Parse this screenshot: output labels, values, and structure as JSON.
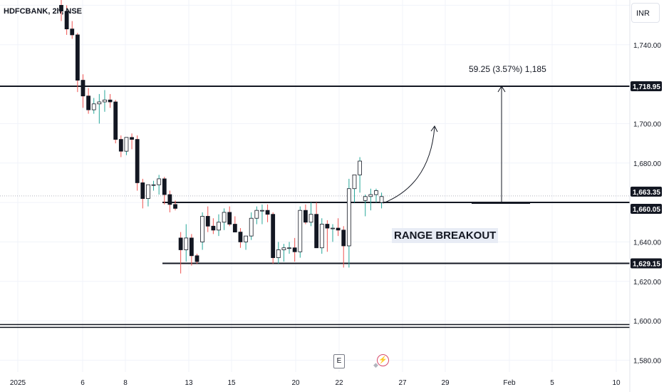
{
  "header": {
    "symbol": "HDFCBANK, 2h, NSE"
  },
  "currency": "INR",
  "annotations": {
    "measure": "59.25 (3.57%) 1,185",
    "breakout": "RANGE BREAKOUT",
    "events": {
      "earnings": "E",
      "dividend": "⚡"
    }
  },
  "chart_data": {
    "type": "candlestick",
    "x_axis": [
      "2025",
      "6",
      "8",
      "13",
      "15",
      "20",
      "22",
      "27",
      "29",
      "Feb",
      "5",
      "10"
    ],
    "y_axis": {
      "ticks": [
        1580,
        1600,
        1620,
        1640,
        1680,
        1700,
        1740
      ],
      "tick_labels": [
        "1,580.00",
        "1,600.00",
        "1,620.00",
        "1,640.00",
        "1,680.00",
        "1,700.00",
        "1,740.00"
      ],
      "range": [
        1560,
        1760
      ]
    },
    "price_badges": [
      {
        "value": 1718.95,
        "label": "1,718.95"
      },
      {
        "value": 1663.35,
        "label": "1,663.35"
      },
      {
        "value": 1660.05,
        "label": "1,660.05"
      },
      {
        "value": 1629.15,
        "label": "1,629.15"
      }
    ],
    "levels": [
      {
        "price": 1718.95,
        "style": "solid",
        "span": "full"
      },
      {
        "price": 1660.05,
        "style": "solid",
        "span": "from-range-start"
      },
      {
        "price": 1629.15,
        "style": "solid",
        "span": "range"
      },
      {
        "price": 1597.0,
        "style": "double",
        "span": "full"
      }
    ],
    "candles": [
      [
        1760,
        1765,
        1752,
        1757
      ],
      [
        1757,
        1760,
        1745,
        1748
      ],
      [
        1748,
        1752,
        1743,
        1745
      ],
      [
        1745,
        1746,
        1716,
        1722
      ],
      [
        1722,
        1725,
        1708,
        1714
      ],
      [
        1714,
        1718,
        1705,
        1707
      ],
      [
        1707,
        1713,
        1705,
        1710
      ],
      [
        1710,
        1715,
        1700,
        1711
      ],
      [
        1711,
        1717,
        1706,
        1712
      ],
      [
        1712,
        1715,
        1708,
        1711
      ],
      [
        1711,
        1712,
        1690,
        1692
      ],
      [
        1692,
        1694,
        1683,
        1686
      ],
      [
        1686,
        1693,
        1684,
        1693
      ],
      [
        1693,
        1695,
        1687,
        1692
      ],
      [
        1692,
        1694,
        1666,
        1670
      ],
      [
        1670,
        1672,
        1657,
        1662
      ],
      [
        1662,
        1668,
        1658,
        1669
      ],
      [
        1669,
        1671,
        1666,
        1669
      ],
      [
        1669,
        1674,
        1664,
        1672
      ],
      [
        1672,
        1673,
        1659,
        1664
      ],
      [
        1664,
        1666,
        1655,
        1659
      ],
      [
        1659,
        1661,
        1656,
        1657
      ],
      [
        1642,
        1645,
        1624,
        1636
      ],
      [
        1636,
        1649,
        1630,
        1642
      ],
      [
        1642,
        1644,
        1628,
        1633
      ],
      [
        1633,
        1634,
        1629,
        1630
      ],
      [
        1640,
        1655,
        1636,
        1653
      ],
      [
        1653,
        1658,
        1645,
        1648
      ],
      [
        1648,
        1652,
        1644,
        1646
      ],
      [
        1646,
        1654,
        1643,
        1650
      ],
      [
        1650,
        1657,
        1646,
        1655
      ],
      [
        1655,
        1658,
        1648,
        1649
      ],
      [
        1649,
        1653,
        1645,
        1645
      ],
      [
        1645,
        1647,
        1637,
        1640
      ],
      [
        1640,
        1643,
        1636,
        1643
      ],
      [
        1643,
        1655,
        1641,
        1652
      ],
      [
        1652,
        1658,
        1649,
        1656
      ],
      [
        1656,
        1659,
        1649,
        1656
      ],
      [
        1656,
        1659,
        1650,
        1654
      ],
      [
        1654,
        1655,
        1629,
        1632
      ],
      [
        1632,
        1640,
        1629,
        1636
      ],
      [
        1636,
        1639,
        1630,
        1637
      ],
      [
        1637,
        1640,
        1634,
        1637
      ],
      [
        1637,
        1642,
        1630,
        1635
      ],
      [
        1635,
        1658,
        1632,
        1656
      ],
      [
        1656,
        1659,
        1649,
        1650
      ],
      [
        1650,
        1660,
        1648,
        1654
      ],
      [
        1654,
        1660,
        1637,
        1637
      ],
      [
        1637,
        1652,
        1634,
        1649
      ],
      [
        1649,
        1651,
        1635,
        1647
      ],
      [
        1647,
        1649,
        1640,
        1647
      ],
      [
        1647,
        1652,
        1643,
        1646
      ],
      [
        1646,
        1648,
        1627,
        1638
      ],
      [
        1638,
        1672,
        1627,
        1667
      ],
      [
        1667,
        1673,
        1660,
        1674
      ],
      [
        1674,
        1683,
        1665,
        1681
      ],
      [
        1661,
        1664,
        1653,
        1663
      ],
      [
        1663,
        1667,
        1656,
        1664
      ],
      [
        1664,
        1667,
        1660,
        1666
      ],
      [
        1660,
        1665,
        1657,
        1663
      ]
    ]
  }
}
